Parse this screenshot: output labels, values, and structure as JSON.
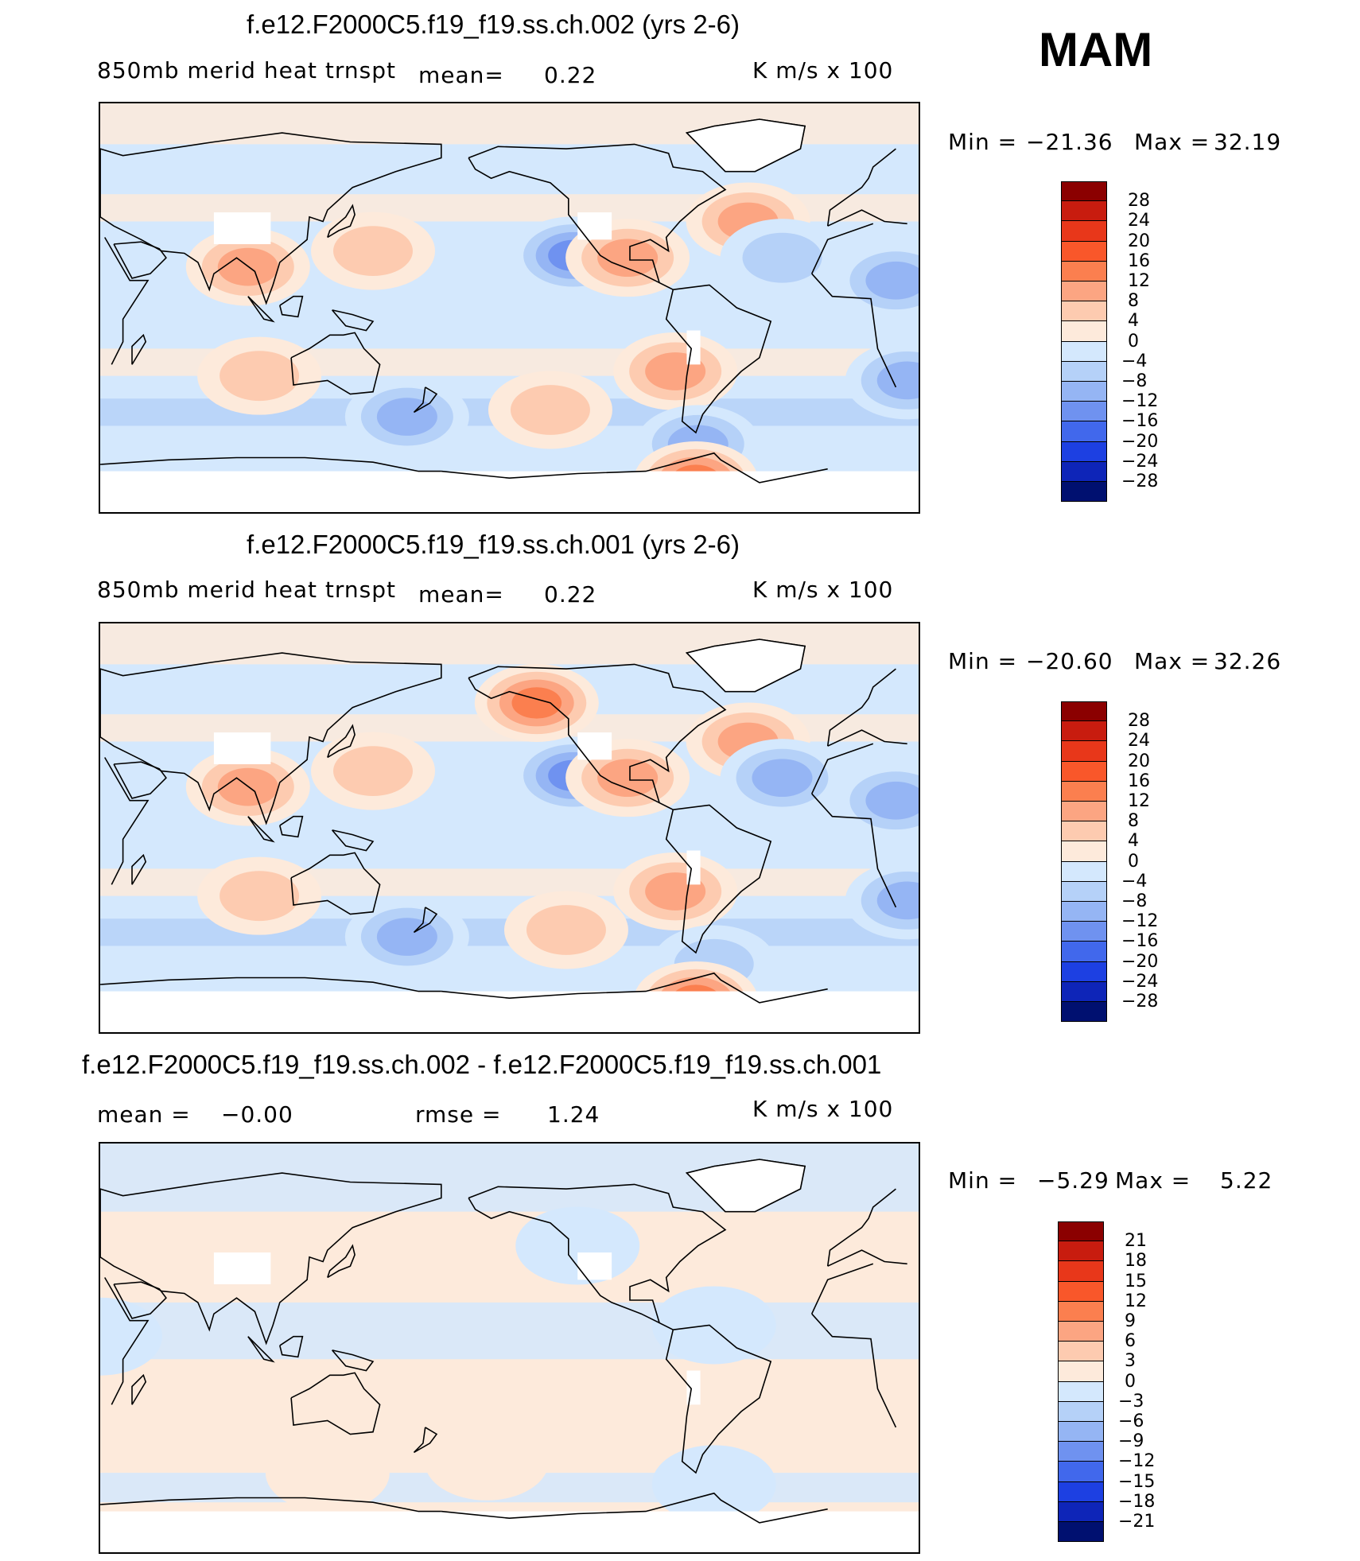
{
  "season": "MAM",
  "colors": {
    "positive": [
      "#fdeadb",
      "#fdcbb0",
      "#fca582",
      "#fb7f4f",
      "#f9572a",
      "#e8371a",
      "#c81c0f",
      "#8b0000"
    ],
    "negative": [
      "#d4e8fd",
      "#b5d1f8",
      "#95b5f4",
      "#6f92f0",
      "#4168ec",
      "#1d40e2",
      "#0e25b8",
      "#001070"
    ],
    "land_outline": "#000000"
  },
  "panels": [
    {
      "title": "f.e12.F2000C5.f19_f19.ss.ch.002 (yrs 2-6)",
      "left_label": "850mb  merid  heat  trnspt",
      "mid_label": "mean=",
      "mid_value": "0.22",
      "units": "K  m/s  x  100",
      "min_label": "Min  =",
      "min_value": "−21.36",
      "max_label": "Max  =",
      "max_value": "32.19",
      "colorbar": [
        "28",
        "24",
        "20",
        "16",
        "12",
        "8",
        "4",
        "0",
        "−4",
        "−8",
        "−12",
        "−16",
        "−20",
        "−24",
        "−28"
      ]
    },
    {
      "title": "f.e12.F2000C5.f19_f19.ss.ch.001 (yrs 2-6)",
      "left_label": "850mb  merid  heat  trnspt",
      "mid_label": "mean=",
      "mid_value": "0.22",
      "units": "K  m/s  x  100",
      "min_label": "Min  =",
      "min_value": "−20.60",
      "max_label": "Max  =",
      "max_value": "32.26",
      "colorbar": [
        "28",
        "24",
        "20",
        "16",
        "12",
        "8",
        "4",
        "0",
        "−4",
        "−8",
        "−12",
        "−16",
        "−20",
        "−24",
        "−28"
      ]
    },
    {
      "title": "f.e12.F2000C5.f19_f19.ss.ch.002 - f.e12.F2000C5.f19_f19.ss.ch.001",
      "left_label": "mean  =",
      "left_value": "−0.00",
      "mid_label": "rmse  =",
      "mid_value": "1.24",
      "units": "K  m/s  x  100",
      "min_label": "Min  =",
      "min_value": "−5.29",
      "max_label": "Max  =",
      "max_value": "5.22",
      "colorbar": [
        "21",
        "18",
        "15",
        "12",
        "9",
        "6",
        "3",
        "0",
        "−3",
        "−6",
        "−9",
        "−12",
        "−15",
        "−18",
        "−21"
      ]
    }
  ],
  "chart_data": [
    {
      "type": "heatmap",
      "title": "f.e12.F2000C5.f19_f19.ss.ch.002 (yrs 2-6)",
      "subtitle": "850mb merid heat trnspt",
      "units": "K m/s x 100",
      "mean": 0.22,
      "min": -21.36,
      "max": 32.19,
      "contour_levels": [
        -28,
        -24,
        -20,
        -16,
        -12,
        -8,
        -4,
        0,
        4,
        8,
        12,
        16,
        20,
        24,
        28
      ],
      "features": [
        {
          "lon": 20,
          "lat": 12,
          "value": -14
        },
        {
          "lon": 95,
          "lat": 18,
          "value": 14
        },
        {
          "lon": 150,
          "lat": 25,
          "value": 8
        },
        {
          "lon": 238,
          "lat": 23,
          "value": -18
        },
        {
          "lon": 262,
          "lat": 22,
          "value": 14
        },
        {
          "lon": 315,
          "lat": 38,
          "value": 12
        },
        {
          "lon": 330,
          "lat": 22,
          "value": -11
        },
        {
          "lon": 283,
          "lat": -28,
          "value": 15
        },
        {
          "lon": 228,
          "lat": -45,
          "value": 10
        },
        {
          "lon": 100,
          "lat": -30,
          "value": 10
        },
        {
          "lon": 165,
          "lat": -48,
          "value": -12
        },
        {
          "lon": 25,
          "lat": -32,
          "value": -12
        },
        {
          "lon": 293,
          "lat": -60,
          "value": -14
        },
        {
          "lon": 292,
          "lat": -76,
          "value": 18
        }
      ]
    },
    {
      "type": "heatmap",
      "title": "f.e12.F2000C5.f19_f19.ss.ch.001 (yrs 2-6)",
      "subtitle": "850mb merid heat trnspt",
      "units": "K m/s x 100",
      "mean": 0.22,
      "min": -20.6,
      "max": 32.26,
      "contour_levels": [
        -28,
        -24,
        -20,
        -16,
        -12,
        -8,
        -4,
        0,
        4,
        8,
        12,
        16,
        20,
        24,
        28
      ],
      "features": [
        {
          "lon": 20,
          "lat": 12,
          "value": -14
        },
        {
          "lon": 95,
          "lat": 18,
          "value": 14
        },
        {
          "lon": 150,
          "lat": 25,
          "value": 10
        },
        {
          "lon": 238,
          "lat": 23,
          "value": -18
        },
        {
          "lon": 262,
          "lat": 22,
          "value": 12
        },
        {
          "lon": 222,
          "lat": 55,
          "value": 16
        },
        {
          "lon": 315,
          "lat": 38,
          "value": 12
        },
        {
          "lon": 330,
          "lat": 22,
          "value": -12
        },
        {
          "lon": 283,
          "lat": -28,
          "value": 14
        },
        {
          "lon": 235,
          "lat": -45,
          "value": 8
        },
        {
          "lon": 100,
          "lat": -30,
          "value": 10
        },
        {
          "lon": 165,
          "lat": -48,
          "value": -13
        },
        {
          "lon": 25,
          "lat": -32,
          "value": -12
        },
        {
          "lon": 300,
          "lat": -60,
          "value": -11
        },
        {
          "lon": 292,
          "lat": -76,
          "value": 18
        }
      ]
    },
    {
      "type": "heatmap",
      "title": "f.e12.F2000C5.f19_f19.ss.ch.002 - f.e12.F2000C5.f19_f19.ss.ch.001",
      "units": "K m/s x 100",
      "mean": -0.0,
      "rmse": 1.24,
      "min": -5.29,
      "max": 5.22,
      "contour_levels": [
        -21,
        -18,
        -15,
        -12,
        -9,
        -6,
        -3,
        0,
        3,
        6,
        9,
        12,
        15,
        18,
        21
      ],
      "features": [
        {
          "lon": 240,
          "lat": 45,
          "value": -3
        },
        {
          "lon": 150,
          "lat": 40,
          "value": 3
        },
        {
          "lon": 300,
          "lat": 10,
          "value": -3
        },
        {
          "lon": 330,
          "lat": 40,
          "value": 2
        },
        {
          "lon": 200,
          "lat": -50,
          "value": 2
        },
        {
          "lon": 130,
          "lat": -55,
          "value": 2
        },
        {
          "lon": 300,
          "lat": -60,
          "value": -3
        },
        {
          "lon": 30,
          "lat": 5,
          "value": -2
        }
      ]
    }
  ]
}
